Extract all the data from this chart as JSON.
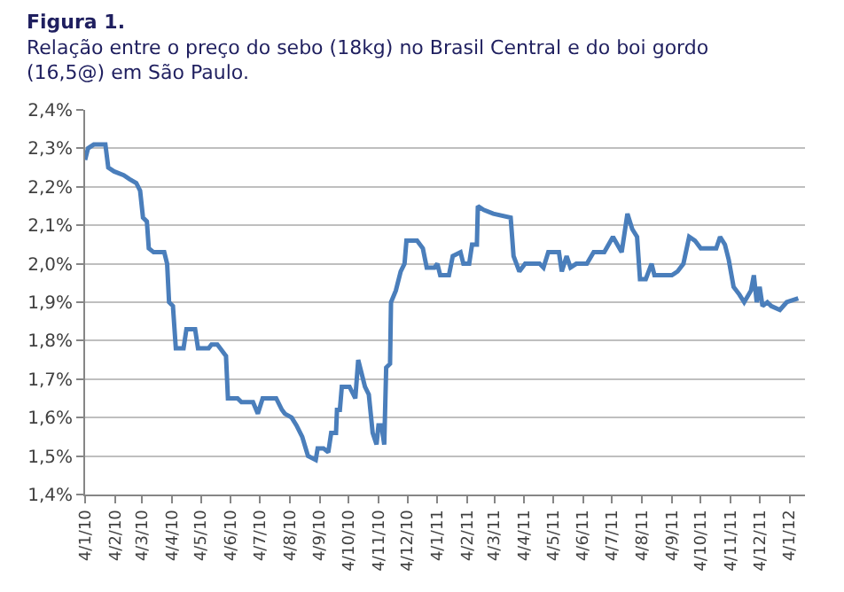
{
  "chart_data": {
    "type": "line",
    "title": "Figura 1.",
    "subtitle": "Relação entre o preço do sebo (18kg) no Brasil Central e do boi gordo (16,5@) em São Paulo.",
    "x": [
      "2010-01-04",
      "2010-01-07",
      "2010-01-13",
      "2010-01-25",
      "2010-01-28",
      "2010-02-03",
      "2010-02-13",
      "2010-02-19",
      "2010-02-26",
      "2010-03-02",
      "2010-03-05",
      "2010-03-09",
      "2010-03-11",
      "2010-03-16",
      "2010-03-27",
      "2010-03-30",
      "2010-04-01",
      "2010-04-05",
      "2010-04-08",
      "2010-04-16",
      "2010-04-19",
      "2010-04-28",
      "2010-05-01",
      "2010-05-12",
      "2010-05-15",
      "2010-05-21",
      "2010-05-24",
      "2010-05-30",
      "2010-06-01",
      "2010-06-11",
      "2010-06-15",
      "2010-06-27",
      "2010-07-02",
      "2010-07-07",
      "2010-07-21",
      "2010-07-27",
      "2010-07-30",
      "2010-08-06",
      "2010-08-11",
      "2010-08-17",
      "2010-08-23",
      "2010-08-31",
      "2010-09-02",
      "2010-09-08",
      "2010-09-13",
      "2010-09-16",
      "2010-09-21",
      "2010-09-22",
      "2010-09-25",
      "2010-09-27",
      "2010-10-05",
      "2010-10-11",
      "2010-10-14",
      "2010-10-18",
      "2010-10-21",
      "2010-10-25",
      "2010-10-29",
      "2010-11-02",
      "2010-11-04",
      "2010-11-07",
      "2010-11-10",
      "2010-11-12",
      "2010-11-16",
      "2010-11-17",
      "2010-11-22",
      "2010-11-27",
      "2010-12-01",
      "2010-12-03",
      "2010-12-14",
      "2010-12-20",
      "2010-12-24",
      "2011-01-01",
      "2011-01-04",
      "2011-01-07",
      "2011-01-16",
      "2011-01-20",
      "2011-01-28",
      "2011-01-31",
      "2011-02-06",
      "2011-02-09",
      "2011-02-14",
      "2011-02-15",
      "2011-02-21",
      "2011-03-03",
      "2011-03-21",
      "2011-03-24",
      "2011-03-27",
      "2011-03-30",
      "2011-04-05",
      "2011-04-20",
      "2011-04-24",
      "2011-04-29",
      "2011-05-10",
      "2011-05-13",
      "2011-05-18",
      "2011-05-22",
      "2011-05-28",
      "2011-06-08",
      "2011-06-15",
      "2011-06-26",
      "2011-07-05",
      "2011-07-14",
      "2011-07-20",
      "2011-07-25",
      "2011-07-30",
      "2011-08-02",
      "2011-08-08",
      "2011-08-14",
      "2011-08-17",
      "2011-09-04",
      "2011-09-10",
      "2011-09-16",
      "2011-09-22",
      "2011-09-28",
      "2011-10-04",
      "2011-10-20",
      "2011-10-24",
      "2011-10-29",
      "2011-11-02",
      "2011-11-07",
      "2011-11-13",
      "2011-11-18",
      "2011-11-25",
      "2011-11-28",
      "2011-12-01",
      "2011-12-04",
      "2011-12-07",
      "2011-12-12",
      "2011-12-16",
      "2011-12-25",
      "2012-01-01",
      "2012-01-13"
    ],
    "series": [
      {
        "color": "#4a7ebb",
        "values": [
          2.27,
          2.3,
          2.31,
          2.31,
          2.25,
          2.24,
          2.23,
          2.22,
          2.21,
          2.19,
          2.12,
          2.11,
          2.04,
          2.03,
          2.03,
          2.0,
          1.9,
          1.89,
          1.78,
          1.78,
          1.83,
          1.83,
          1.78,
          1.78,
          1.79,
          1.79,
          1.78,
          1.76,
          1.65,
          1.65,
          1.64,
          1.64,
          1.61,
          1.65,
          1.65,
          1.62,
          1.61,
          1.6,
          1.58,
          1.55,
          1.5,
          1.49,
          1.52,
          1.52,
          1.51,
          1.56,
          1.56,
          1.62,
          1.62,
          1.68,
          1.68,
          1.65,
          1.75,
          1.71,
          1.68,
          1.66,
          1.56,
          1.53,
          1.58,
          1.58,
          1.53,
          1.73,
          1.74,
          1.9,
          1.93,
          1.98,
          2.0,
          2.06,
          2.06,
          2.04,
          1.99,
          1.99,
          2.0,
          1.97,
          1.97,
          2.02,
          2.03,
          2.0,
          2.0,
          2.05,
          2.05,
          2.15,
          2.14,
          2.13,
          2.12,
          2.02,
          2.0,
          1.98,
          2.0,
          2.0,
          1.99,
          2.03,
          2.03,
          1.98,
          2.02,
          1.99,
          2.0,
          2.0,
          2.03,
          2.03,
          2.07,
          2.03,
          2.13,
          2.09,
          2.07,
          1.96,
          1.96,
          2.0,
          1.97,
          1.97,
          1.98,
          2.0,
          2.07,
          2.06,
          2.04,
          2.04,
          2.07,
          2.05,
          2.01,
          1.94,
          1.92,
          1.9,
          1.93,
          1.97,
          1.9,
          1.94,
          1.89,
          1.9,
          1.89,
          1.88,
          1.9,
          1.91
        ]
      }
    ],
    "xlim": [
      "2010-01-04",
      "2012-01-20"
    ],
    "xticks": [
      {
        "value": "2010-01-04",
        "label": "4/1/10"
      },
      {
        "value": "2010-02-04",
        "label": "4/2/10"
      },
      {
        "value": "2010-03-04",
        "label": "4/3/10"
      },
      {
        "value": "2010-04-04",
        "label": "4/4/10"
      },
      {
        "value": "2010-05-04",
        "label": "4/5/10"
      },
      {
        "value": "2010-06-04",
        "label": "4/6/10"
      },
      {
        "value": "2010-07-04",
        "label": "4/7/10"
      },
      {
        "value": "2010-08-04",
        "label": "4/8/10"
      },
      {
        "value": "2010-09-04",
        "label": "4/9/10"
      },
      {
        "value": "2010-10-04",
        "label": "4/10/10"
      },
      {
        "value": "2010-11-04",
        "label": "4/11/10"
      },
      {
        "value": "2010-12-04",
        "label": "4/12/10"
      },
      {
        "value": "2011-01-04",
        "label": "4/1/11"
      },
      {
        "value": "2011-02-04",
        "label": "4/2/11"
      },
      {
        "value": "2011-03-04",
        "label": "4/3/11"
      },
      {
        "value": "2011-04-04",
        "label": "4/4/11"
      },
      {
        "value": "2011-05-04",
        "label": "4/5/11"
      },
      {
        "value": "2011-06-04",
        "label": "4/6/11"
      },
      {
        "value": "2011-07-04",
        "label": "4/7/11"
      },
      {
        "value": "2011-08-04",
        "label": "4/8/11"
      },
      {
        "value": "2011-09-04",
        "label": "4/9/11"
      },
      {
        "value": "2011-10-04",
        "label": "4/10/11"
      },
      {
        "value": "2011-11-04",
        "label": "4/11/11"
      },
      {
        "value": "2011-12-04",
        "label": "4/12/11"
      },
      {
        "value": "2012-01-04",
        "label": "4/1/12"
      }
    ],
    "ylim": [
      1.4,
      2.4
    ],
    "yticks": [
      {
        "value": 1.4,
        "label": "1,4%"
      },
      {
        "value": 1.5,
        "label": "1,5%"
      },
      {
        "value": 1.6,
        "label": "1,6%"
      },
      {
        "value": 1.7,
        "label": "1,7%"
      },
      {
        "value": 1.8,
        "label": "1,8%"
      },
      {
        "value": 1.9,
        "label": "1,9%"
      },
      {
        "value": 2.0,
        "label": "2,0%"
      },
      {
        "value": 2.1,
        "label": "2,1%"
      },
      {
        "value": 2.2,
        "label": "2,2%"
      },
      {
        "value": 2.3,
        "label": "2,3%"
      },
      {
        "value": 2.4,
        "label": "2,4%"
      }
    ],
    "grid": "y",
    "line_style": "solid"
  }
}
